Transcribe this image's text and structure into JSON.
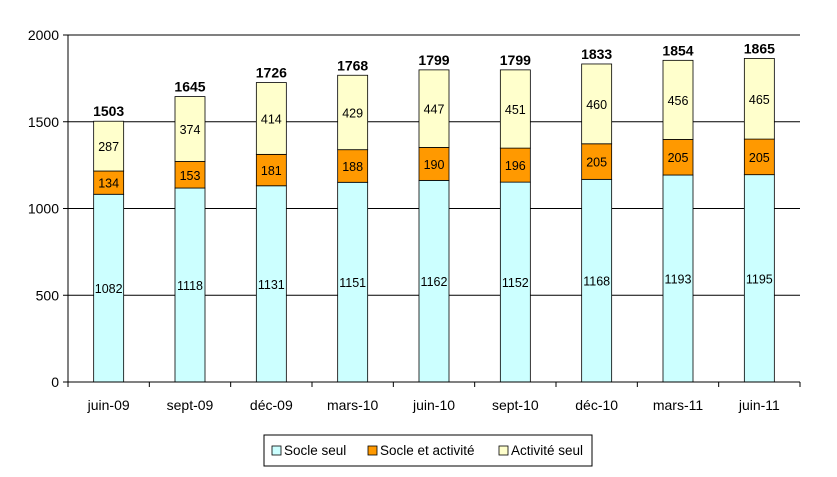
{
  "chart_data": {
    "type": "bar",
    "stacked": true,
    "categories": [
      "juin-09",
      "sept-09",
      "déc-09",
      "mars-10",
      "juin-10",
      "sept-10",
      "déc-10",
      "mars-11",
      "juin-11"
    ],
    "series": [
      {
        "name": "Socle seul",
        "color": "#ccffff",
        "values": [
          1082,
          1118,
          1131,
          1151,
          1162,
          1152,
          1168,
          1193,
          1195
        ]
      },
      {
        "name": "Socle et activité",
        "color": "#ff9900",
        "values": [
          134,
          153,
          181,
          188,
          190,
          196,
          205,
          205,
          205
        ]
      },
      {
        "name": "Activité seul",
        "color": "#ffffcc",
        "values": [
          287,
          374,
          414,
          429,
          447,
          451,
          460,
          456,
          465
        ]
      }
    ],
    "totals": [
      1503,
      1645,
      1726,
      1768,
      1799,
      1799,
      1833,
      1854,
      1865
    ],
    "ylim": [
      0,
      2000
    ],
    "yticks": [
      0,
      500,
      1000,
      1500,
      2000
    ],
    "grid": true,
    "legend_position": "bottom",
    "title": "",
    "xlabel": "",
    "ylabel": ""
  }
}
